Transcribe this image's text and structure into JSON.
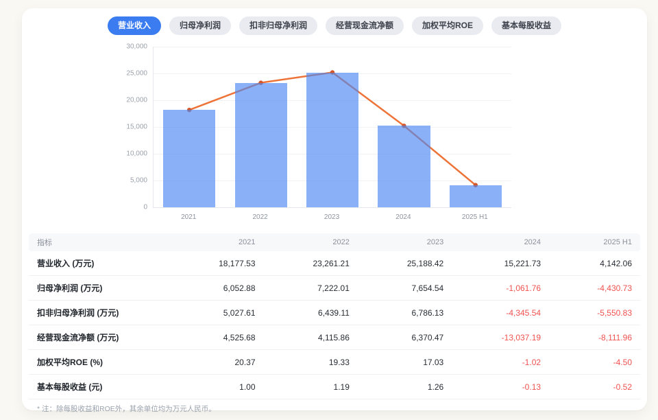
{
  "page": {
    "background": "#faf8f3",
    "card_background": "#ffffff"
  },
  "tabs": {
    "active_bg": "#3b7cf0",
    "active_text": "#ffffff",
    "inactive_bg": "#e9ebf0",
    "inactive_text": "#3c414b",
    "items": [
      {
        "label": "营业收入",
        "active": true
      },
      {
        "label": "归母净利润",
        "active": false
      },
      {
        "label": "扣非归母净利润",
        "active": false
      },
      {
        "label": "经营现金流净额",
        "active": false
      },
      {
        "label": "加权平均ROE",
        "active": false
      },
      {
        "label": "基本每股收益",
        "active": false
      }
    ]
  },
  "chart_data": {
    "type": "bar",
    "categories": [
      "2021",
      "2022",
      "2023",
      "2024",
      "2025 H1"
    ],
    "series": [
      {
        "name": "营业收入-柱",
        "type": "bar",
        "values": [
          18177.53,
          23261.21,
          25188.42,
          15221.73,
          4142.06
        ]
      },
      {
        "name": "营业收入-折线",
        "type": "line",
        "values": [
          18177.53,
          23261.21,
          25188.42,
          15221.73,
          4142.06
        ]
      }
    ],
    "ylim": [
      0,
      30000
    ],
    "y_tick_step": 5000,
    "y_tick_labels": [
      "30,000",
      "25,000",
      "20,000",
      "15,000",
      "10,000",
      "5,000",
      "0"
    ],
    "grid": true,
    "legend": "none",
    "bar_color": "rgba(75,135,243,0.65)",
    "line_color": "#ee7338",
    "marker_color": "#d4572a"
  },
  "table": {
    "columns": [
      "指标",
      "2021",
      "2022",
      "2023",
      "2024",
      "2025 H1"
    ],
    "negative_color": "#f05250",
    "rows": [
      {
        "label": "营业收入 (万元)",
        "values": [
          "18,177.53",
          "23,261.21",
          "25,188.42",
          "15,221.73",
          "4,142.06"
        ]
      },
      {
        "label": "归母净利润 (万元)",
        "values": [
          "6,052.88",
          "7,222.01",
          "7,654.54",
          "-1,061.76",
          "-4,430.73"
        ]
      },
      {
        "label": "扣非归母净利润 (万元)",
        "values": [
          "5,027.61",
          "6,439.11",
          "6,786.13",
          "-4,345.54",
          "-5,550.83"
        ]
      },
      {
        "label": "经营现金流净额 (万元)",
        "values": [
          "4,525.68",
          "4,115.86",
          "6,370.47",
          "-13,037.19",
          "-8,111.96"
        ]
      },
      {
        "label": "加权平均ROE (%)",
        "values": [
          "20.37",
          "19.33",
          "17.03",
          "-1.02",
          "-4.50"
        ]
      },
      {
        "label": "基本每股收益 (元)",
        "values": [
          "1.00",
          "1.19",
          "1.26",
          "-0.13",
          "-0.52"
        ]
      }
    ]
  },
  "footnote": "* 注：除每股收益和ROE外，其余单位均为万元人民币。"
}
